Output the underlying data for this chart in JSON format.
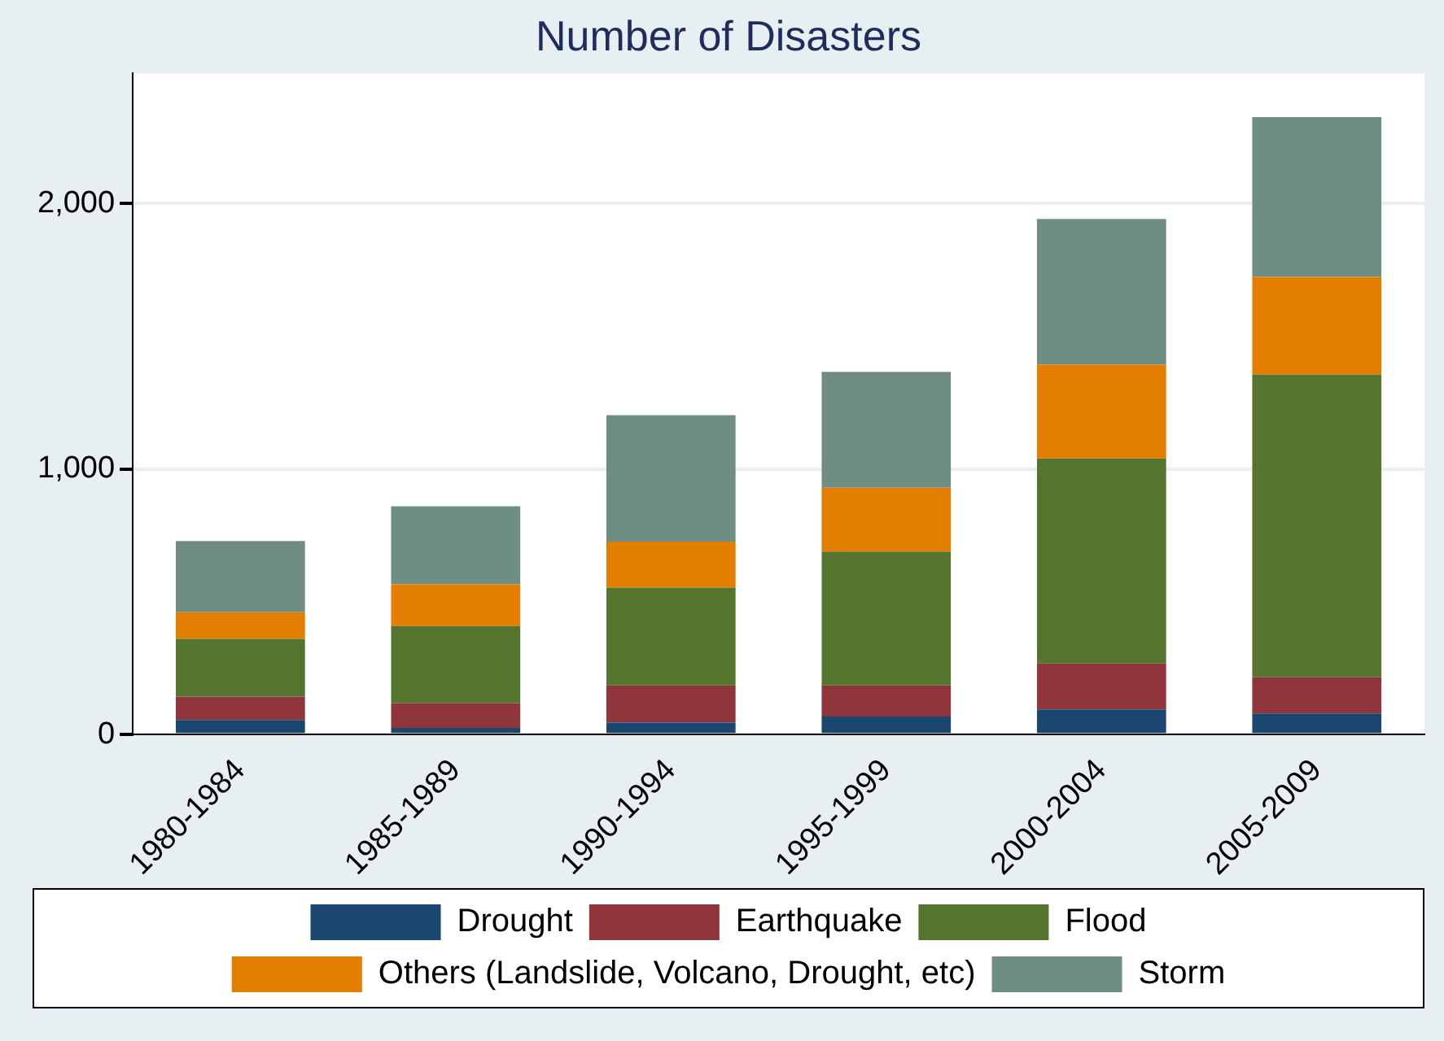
{
  "chart_data": {
    "type": "bar",
    "title": "Number of Disasters",
    "stacked": true,
    "categories": [
      "1980-1984",
      "1985-1989",
      "1990-1994",
      "1995-1999",
      "2000-2004",
      "2005-2009"
    ],
    "series": [
      {
        "name": "Drought",
        "color": "#1a476f",
        "values": [
          55,
          25,
          45,
          68,
          95,
          80
        ]
      },
      {
        "name": "Earthquake",
        "color": "#90353b",
        "values": [
          88,
          93,
          140,
          117,
          173,
          136
        ]
      },
      {
        "name": "Flood",
        "color": "#55752f",
        "values": [
          218,
          291,
          369,
          504,
          772,
          1140
        ]
      },
      {
        "name": "Others (Landslide, Volcano, Drought, etc)",
        "color": "#e37e00",
        "values": [
          100,
          157,
          173,
          241,
          353,
          368
        ]
      },
      {
        "name": "Storm",
        "color": "#6e8e84",
        "values": [
          268,
          294,
          476,
          436,
          549,
          602
        ]
      }
    ],
    "ylim": [
      0,
      2490
    ],
    "yticks": [
      0,
      {
        "value": 1000,
        "label": "1,000"
      },
      {
        "value": 2000,
        "label": "2,000"
      }
    ],
    "grid": "y",
    "legend": "bottom"
  }
}
